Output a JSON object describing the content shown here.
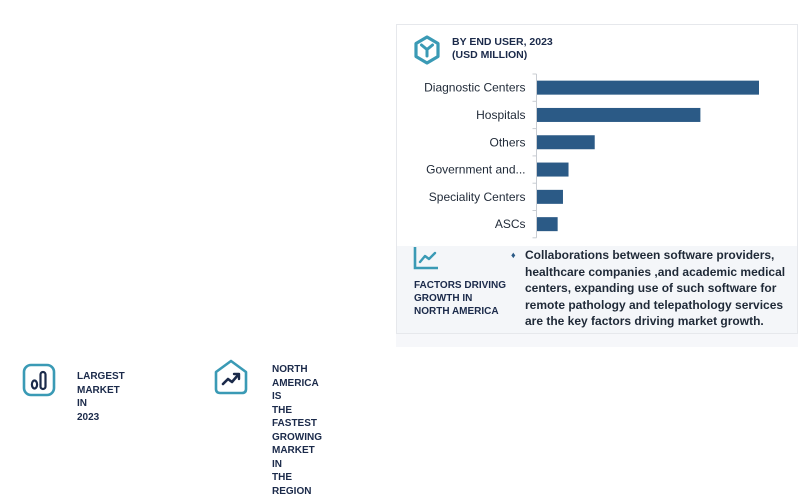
{
  "panel": {
    "title_line1": "BY END USER, 2023",
    "title_line2": "(USD MILLION)",
    "icon": "cube-icon",
    "accent_color": "#3a9ab5"
  },
  "chart_data": {
    "type": "bar",
    "orientation": "horizontal",
    "title": "BY END USER, 2023 (USD MILLION)",
    "categories": [
      "Diagnostic Centers",
      "Hospitals",
      "Others",
      "Government and...",
      "Speciality Centers",
      "ASCs"
    ],
    "values": [
      100,
      73.6,
      26.0,
      14.2,
      11.7,
      9.3
    ],
    "value_note": "relative values (largest = 100); no value axis shown",
    "xlabel": "",
    "ylabel": "",
    "xlim": [
      0,
      100
    ],
    "grid": false,
    "legend": "none",
    "bar_color": "#2b5a86"
  },
  "factors": {
    "icon": "line-chart-icon",
    "label_lines": [
      "FACTORS DRIVING",
      "GROWTH IN",
      "NORTH AMERICA"
    ],
    "bullet": "♦",
    "text_lines": [
      "Collaborations between software providers,",
      "healthcare companies ,and academic medical",
      "centers, expanding use of such software  for",
      "remote pathology and telepathology services",
      "are the key factors driving market growth."
    ]
  },
  "stats": [
    {
      "icon": "bar-chart-icon",
      "lines": [
        "LARGEST MARKET IN",
        "2023"
      ]
    },
    {
      "icon": "home-trend-icon",
      "lines": [
        "NORTH AMERICA IS",
        "THE FASTEST",
        "GROWING MARKET IN",
        "THE REGION"
      ]
    }
  ]
}
